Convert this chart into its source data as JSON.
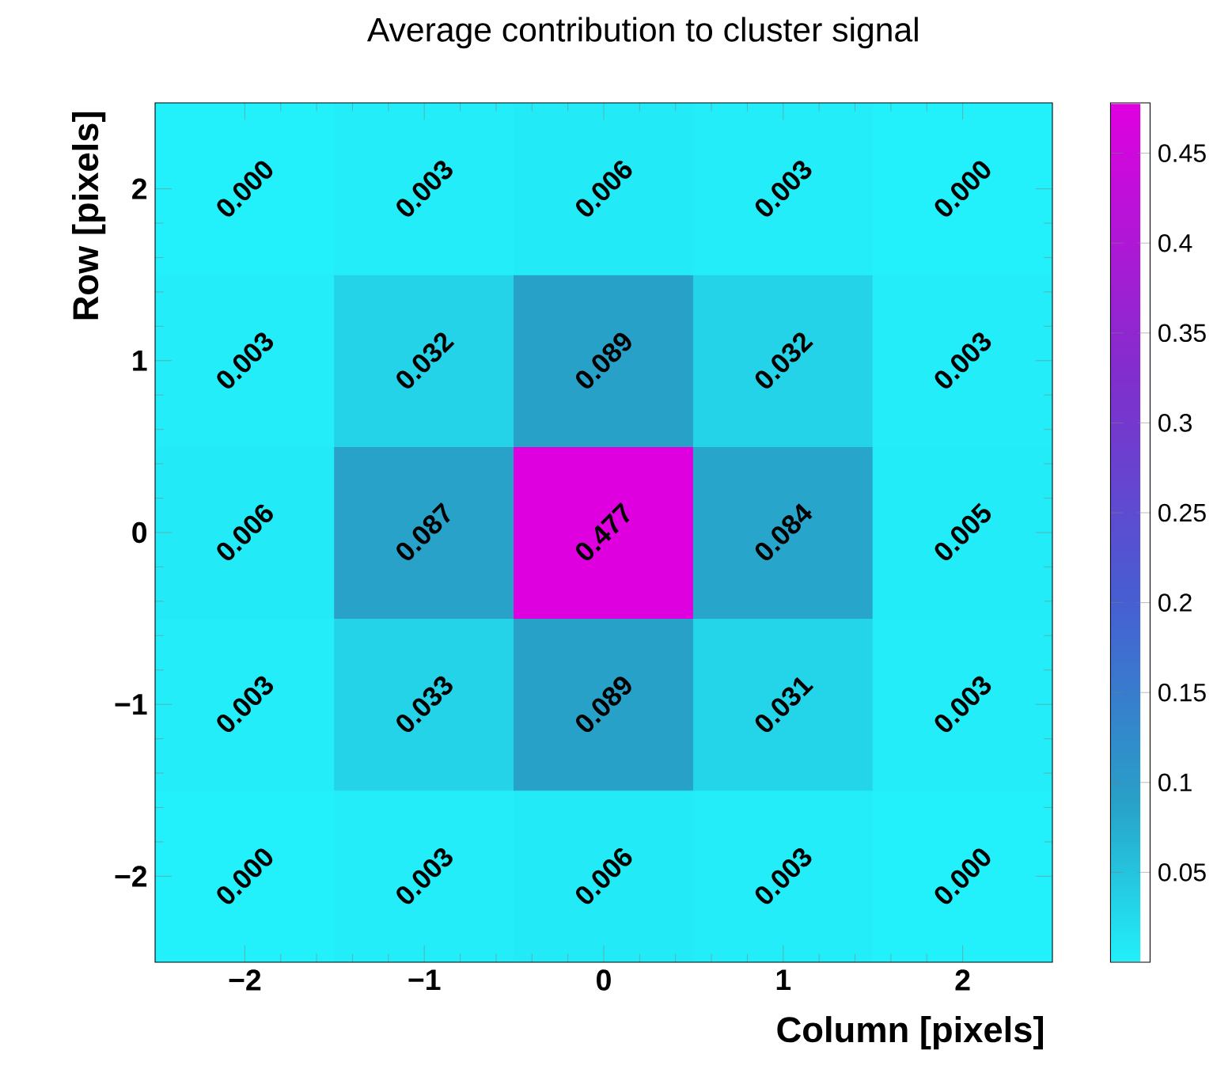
{
  "chart_data": {
    "type": "heatmap",
    "title": "Average contribution to cluster signal",
    "xlabel": "Column [pixels]",
    "ylabel": "Row [pixels]",
    "categories": [
      "−2",
      "−1",
      "0",
      "1",
      "2"
    ],
    "y_categories": [
      "2",
      "1",
      "0",
      "−1",
      "−2"
    ],
    "cells": [
      [
        0.0,
        0.003,
        0.006,
        0.003,
        0.0
      ],
      [
        0.003,
        0.032,
        0.089,
        0.032,
        0.003
      ],
      [
        0.006,
        0.087,
        0.477,
        0.084,
        0.005
      ],
      [
        0.003,
        0.033,
        0.089,
        0.031,
        0.003
      ],
      [
        0.0,
        0.003,
        0.006,
        0.003,
        0.0
      ]
    ],
    "cell_labels": [
      [
        "0.000",
        "0.003",
        "0.006",
        "0.003",
        "0.000"
      ],
      [
        "0.003",
        "0.032",
        "0.089",
        "0.032",
        "0.003"
      ],
      [
        "0.006",
        "0.087",
        "0.477",
        "0.084",
        "0.005"
      ],
      [
        "0.003",
        "0.033",
        "0.089",
        "0.031",
        "0.003"
      ],
      [
        "0.000",
        "0.003",
        "0.006",
        "0.003",
        "0.000"
      ]
    ],
    "clim": [
      0,
      0.478
    ],
    "cticks": [
      0.05,
      0.1,
      0.15,
      0.2,
      0.25,
      0.3,
      0.35,
      0.4,
      0.45
    ]
  }
}
